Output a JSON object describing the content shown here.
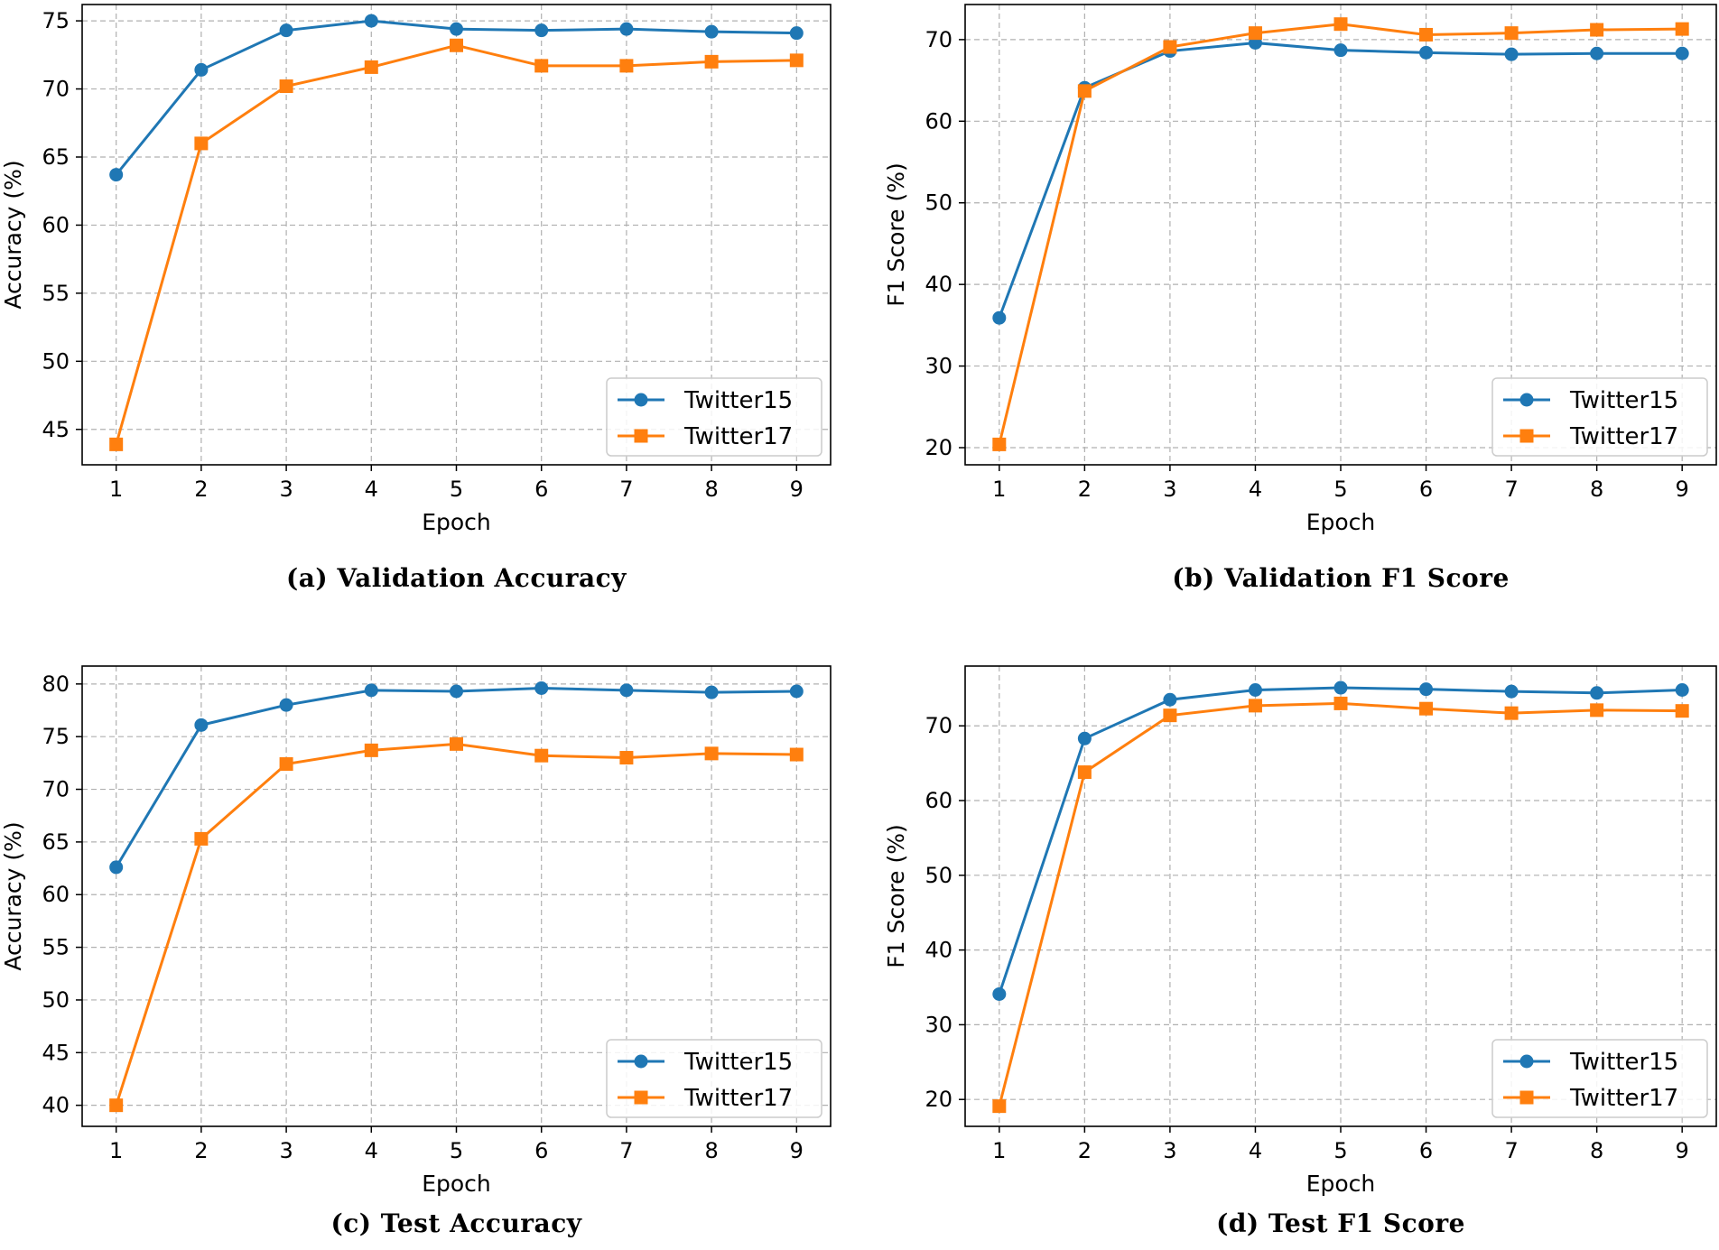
{
  "colors": {
    "Twitter15": "#1f77b4",
    "Twitter17": "#ff7f0e",
    "grid": "#b0b0b0",
    "axes": "#000000"
  },
  "chart_data": [
    {
      "id": "a",
      "type": "line",
      "title": "(a) Validation Accuracy",
      "xlabel": "Epoch",
      "ylabel": "Accuracy (%)",
      "x": [
        1,
        2,
        3,
        4,
        5,
        6,
        7,
        8,
        9
      ],
      "xlim": [
        0.6,
        9.4
      ],
      "ylim": [
        42.4,
        76.2
      ],
      "yticks": [
        45,
        50,
        55,
        60,
        65,
        70,
        75
      ],
      "grid": true,
      "legend": "lower right",
      "series": [
        {
          "name": "Twitter15",
          "marker": "circle",
          "values": [
            63.7,
            71.4,
            74.3,
            75.0,
            74.4,
            74.3,
            74.4,
            74.2,
            74.1
          ]
        },
        {
          "name": "Twitter17",
          "marker": "square",
          "values": [
            43.9,
            66.0,
            70.2,
            71.6,
            73.2,
            71.7,
            71.7,
            72.0,
            72.1
          ]
        }
      ]
    },
    {
      "id": "b",
      "type": "line",
      "title": "(b) Validation F1 Score",
      "xlabel": "Epoch",
      "ylabel": "F1 Score (%)",
      "x": [
        1,
        2,
        3,
        4,
        5,
        6,
        7,
        8,
        9
      ],
      "xlim": [
        0.6,
        9.4
      ],
      "ylim": [
        17.9,
        74.3
      ],
      "yticks": [
        20,
        30,
        40,
        50,
        60,
        70
      ],
      "grid": true,
      "legend": "lower right",
      "series": [
        {
          "name": "Twitter15",
          "marker": "circle",
          "values": [
            35.9,
            64.1,
            68.6,
            69.6,
            68.7,
            68.4,
            68.2,
            68.3,
            68.3
          ]
        },
        {
          "name": "Twitter17",
          "marker": "square",
          "values": [
            20.4,
            63.7,
            69.1,
            70.8,
            71.9,
            70.6,
            70.8,
            71.2,
            71.3
          ]
        }
      ]
    },
    {
      "id": "c",
      "type": "line",
      "title": "(c) Test Accuracy",
      "xlabel": "Epoch",
      "ylabel": "Accuracy (%)",
      "x": [
        1,
        2,
        3,
        4,
        5,
        6,
        7,
        8,
        9
      ],
      "xlim": [
        0.6,
        9.4
      ],
      "ylim": [
        38.0,
        81.7
      ],
      "yticks": [
        40,
        45,
        50,
        55,
        60,
        65,
        70,
        75,
        80
      ],
      "grid": true,
      "legend": "lower right",
      "series": [
        {
          "name": "Twitter15",
          "marker": "circle",
          "values": [
            62.6,
            76.1,
            78.0,
            79.4,
            79.3,
            79.6,
            79.4,
            79.2,
            79.3
          ]
        },
        {
          "name": "Twitter17",
          "marker": "square",
          "values": [
            40.0,
            65.3,
            72.4,
            73.7,
            74.3,
            73.2,
            73.0,
            73.4,
            73.3
          ]
        }
      ]
    },
    {
      "id": "d",
      "type": "line",
      "title": "(d) Test F1 Score",
      "xlabel": "Epoch",
      "ylabel": "F1 Score (%)",
      "x": [
        1,
        2,
        3,
        4,
        5,
        6,
        7,
        8,
        9
      ],
      "xlim": [
        0.6,
        9.4
      ],
      "ylim": [
        16.4,
        78.0
      ],
      "yticks": [
        20,
        30,
        40,
        50,
        60,
        70
      ],
      "grid": true,
      "legend": "lower right",
      "series": [
        {
          "name": "Twitter15",
          "marker": "circle",
          "values": [
            34.1,
            68.3,
            73.5,
            74.8,
            75.1,
            74.9,
            74.6,
            74.4,
            74.8
          ]
        },
        {
          "name": "Twitter17",
          "marker": "square",
          "values": [
            19.1,
            63.8,
            71.4,
            72.7,
            73.0,
            72.3,
            71.7,
            72.1,
            72.0
          ]
        }
      ]
    }
  ]
}
